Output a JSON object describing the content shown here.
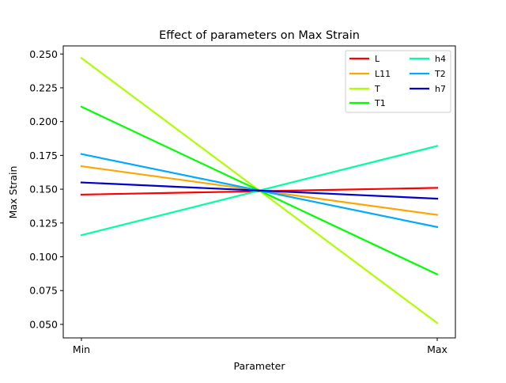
{
  "chart_data": {
    "type": "line",
    "title": "Effect of parameters on Max Strain",
    "xlabel": "Parameter",
    "ylabel": "Max Strain",
    "categories": [
      "Min",
      "Max"
    ],
    "ylim": [
      0.04,
      0.256
    ],
    "yticks": [
      0.05,
      0.075,
      0.1,
      0.125,
      0.15,
      0.175,
      0.2,
      0.225,
      0.25
    ],
    "ytick_labels": [
      "0.050",
      "0.075",
      "0.100",
      "0.125",
      "0.150",
      "0.175",
      "0.200",
      "0.225",
      "0.250"
    ],
    "grid": false,
    "legend": {
      "placement": "top-right",
      "columns": 2
    },
    "series": [
      {
        "name": "L",
        "color": "#ff0000",
        "values": [
          0.146,
          0.151
        ]
      },
      {
        "name": "L11",
        "color": "#ffa500",
        "values": [
          0.167,
          0.131
        ]
      },
      {
        "name": "T",
        "color": "#adff00",
        "values": [
          0.247,
          0.051
        ]
      },
      {
        "name": "T1",
        "color": "#00ff00",
        "values": [
          0.211,
          0.087
        ]
      },
      {
        "name": "h4",
        "color": "#00ffa0",
        "values": [
          0.116,
          0.182
        ]
      },
      {
        "name": "T2",
        "color": "#00aaff",
        "values": [
          0.176,
          0.122
        ]
      },
      {
        "name": "h7",
        "color": "#0000cc",
        "values": [
          0.155,
          0.143
        ]
      }
    ]
  }
}
